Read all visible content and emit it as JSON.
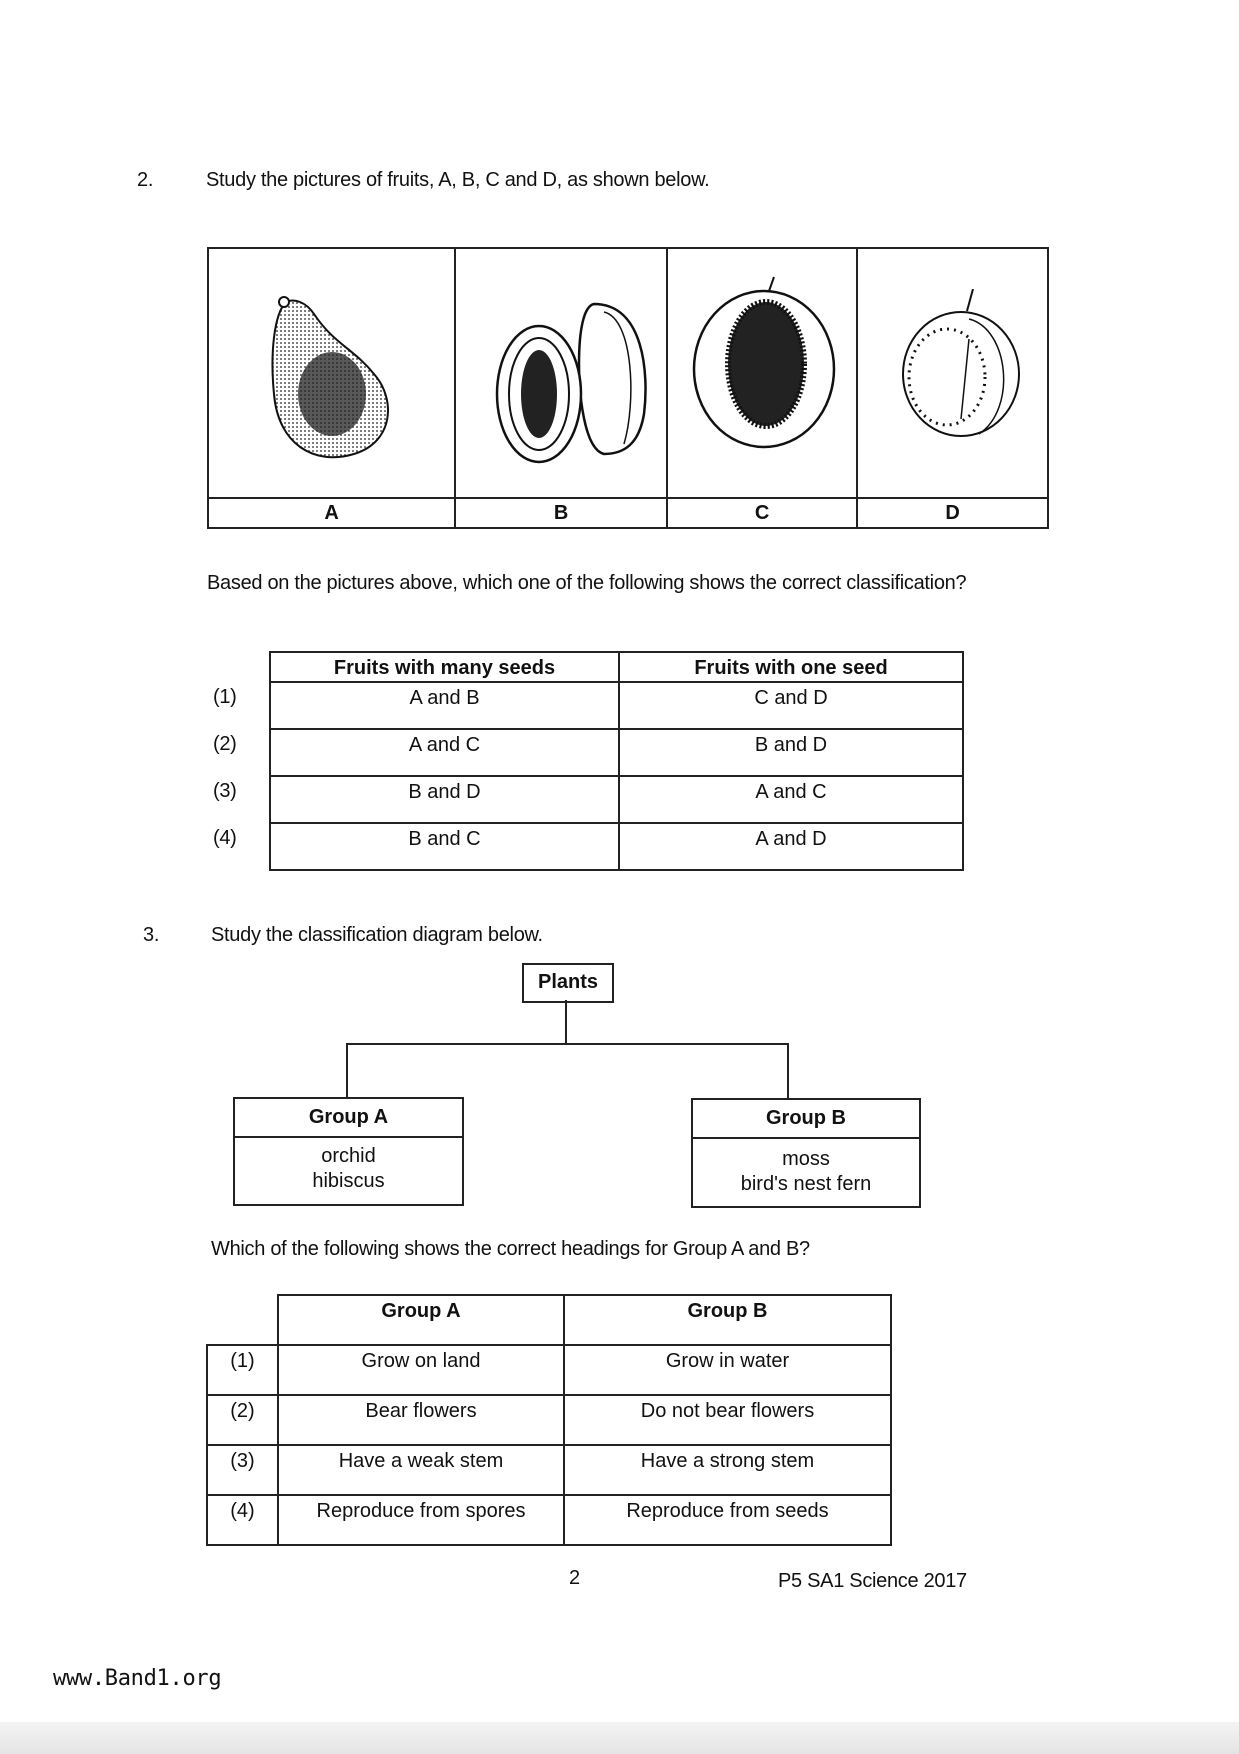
{
  "q2": {
    "number": "2.",
    "prompt": "Study the pictures of fruits, A, B, C and D, as shown below.",
    "fruits": [
      {
        "label": "A",
        "icon": "avocado-drawing"
      },
      {
        "label": "B",
        "icon": "papaya-drawing"
      },
      {
        "label": "C",
        "icon": "peach-drawing"
      },
      {
        "label": "D",
        "icon": "guava-drawing"
      }
    ],
    "question": "Based on the pictures above, which one of the following shows the correct classification?",
    "table": {
      "headers": [
        "Fruits with many seeds",
        "Fruits with one seed"
      ],
      "rows": [
        {
          "option": "(1)",
          "cells": [
            "A and B",
            "C and D"
          ]
        },
        {
          "option": "(2)",
          "cells": [
            "A and C",
            "B and D"
          ]
        },
        {
          "option": "(3)",
          "cells": [
            "B and D",
            "A and C"
          ]
        },
        {
          "option": "(4)",
          "cells": [
            "B and C",
            "A and D"
          ]
        }
      ]
    }
  },
  "q3": {
    "number": "3.",
    "prompt": "Study the classification diagram below.",
    "diagram": {
      "root": "Plants",
      "group_a": {
        "title": "Group A",
        "items": [
          "orchid",
          "hibiscus"
        ]
      },
      "group_b": {
        "title": "Group B",
        "items": [
          "moss",
          "bird's nest fern"
        ]
      }
    },
    "question": "Which of the following shows the correct headings for Group A and B?",
    "table": {
      "headers": [
        "Group A",
        "Group B"
      ],
      "rows": [
        {
          "option": "(1)",
          "cells": [
            "Grow on land",
            "Grow in water"
          ]
        },
        {
          "option": "(2)",
          "cells": [
            "Bear flowers",
            "Do not bear flowers"
          ]
        },
        {
          "option": "(3)",
          "cells": [
            "Have a weak stem",
            "Have a strong stem"
          ]
        },
        {
          "option": "(4)",
          "cells": [
            "Reproduce from spores",
            "Reproduce from seeds"
          ]
        }
      ]
    }
  },
  "footer": {
    "page_number": "2",
    "paper_title": "P5 SA1 Science 2017",
    "watermark": "www.Band1.org"
  }
}
